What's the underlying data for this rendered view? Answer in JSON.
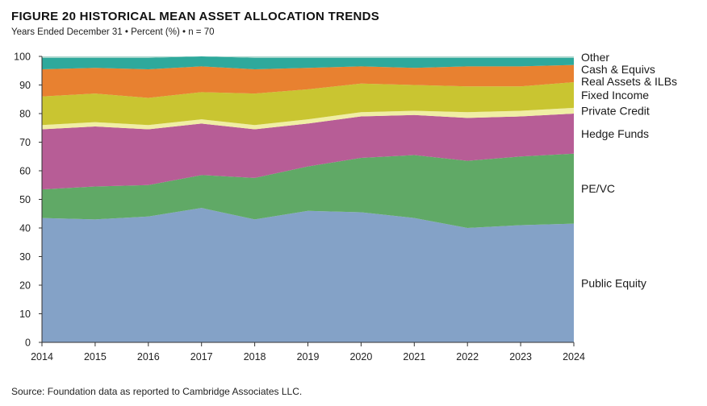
{
  "header": {
    "title": "FIGURE 20   HISTORICAL MEAN ASSET ALLOCATION TRENDS",
    "subtitle": "Years Ended December 31 • Percent (%) • n = 70"
  },
  "footer": {
    "source": "Source: Foundation data as reported to Cambridge Associates LLC."
  },
  "chart_data": {
    "type": "area",
    "stacked": true,
    "title": "FIGURE 20   HISTORICAL MEAN ASSET ALLOCATION TRENDS",
    "subtitle": "Years Ended December 31 • Percent (%) • n = 70",
    "xlabel": "",
    "ylabel": "",
    "x": [
      2014,
      2015,
      2016,
      2017,
      2018,
      2019,
      2020,
      2021,
      2022,
      2023,
      2024
    ],
    "ylim": [
      0,
      100
    ],
    "yticks": [
      0,
      10,
      20,
      30,
      40,
      50,
      60,
      70,
      80,
      90,
      100
    ],
    "grid": false,
    "legend_placement": "right",
    "series": [
      {
        "name": "Public Equity",
        "color": "#84a2c7",
        "values": [
          43.5,
          43.0,
          44.0,
          47.0,
          43.0,
          46.0,
          45.5,
          43.5,
          40.0,
          41.0,
          41.5
        ]
      },
      {
        "name": "PE/VC",
        "color": "#60a966",
        "values": [
          10.0,
          11.5,
          11.0,
          11.5,
          14.5,
          15.5,
          19.0,
          22.0,
          23.5,
          24.0,
          24.5
        ]
      },
      {
        "name": "Hedge Funds",
        "color": "#b75d96",
        "values": [
          21.0,
          21.0,
          19.5,
          18.0,
          17.0,
          15.0,
          14.5,
          14.0,
          15.0,
          14.0,
          14.0
        ]
      },
      {
        "name": "Private Credit",
        "color": "#f0eea4",
        "values": [
          1.5,
          1.5,
          1.5,
          1.5,
          1.5,
          1.5,
          1.5,
          1.5,
          2.0,
          2.0,
          2.0
        ]
      },
      {
        "name": "Fixed Income",
        "color": "#c9c531",
        "values": [
          10.0,
          10.0,
          9.5,
          9.5,
          11.0,
          10.5,
          10.0,
          9.0,
          9.0,
          8.5,
          9.0
        ]
      },
      {
        "name": "Real Assets & ILBs",
        "color": "#e88130",
        "values": [
          9.5,
          9.0,
          10.0,
          9.0,
          8.5,
          7.5,
          6.0,
          6.0,
          7.0,
          7.0,
          6.0
        ]
      },
      {
        "name": "Cash & Equivs",
        "color": "#2ea99c",
        "values": [
          4.0,
          3.5,
          4.0,
          3.5,
          4.0,
          3.5,
          3.0,
          3.5,
          3.0,
          3.0,
          2.5
        ]
      },
      {
        "name": "Other",
        "color": "#a8d5cb",
        "values": [
          0.5,
          0.5,
          0.5,
          0.0,
          0.5,
          0.5,
          0.5,
          0.5,
          0.5,
          0.5,
          0.5
        ]
      }
    ]
  }
}
